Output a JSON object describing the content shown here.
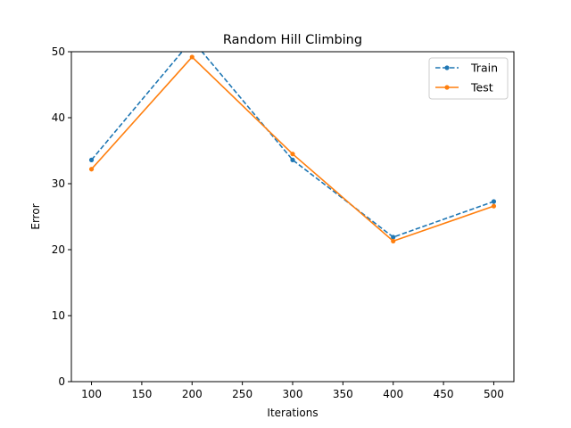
{
  "chart_data": {
    "type": "line",
    "title": "Random Hill Climbing",
    "xlabel": "Iterations",
    "ylabel": "Error",
    "x": [
      100,
      200,
      300,
      400,
      500
    ],
    "xlim": [
      80,
      520
    ],
    "ylim": [
      0,
      50
    ],
    "xticks": [
      100,
      150,
      200,
      250,
      300,
      350,
      400,
      450,
      500
    ],
    "yticks": [
      0,
      10,
      20,
      30,
      40,
      50
    ],
    "grid": false,
    "legend_position": "top-right",
    "series": [
      {
        "name": "Train",
        "values": [
          33.6,
          51.8,
          33.6,
          21.9,
          27.3
        ],
        "color": "#1f77b4",
        "style": "dashed",
        "marker": "dot"
      },
      {
        "name": "Test",
        "values": [
          32.2,
          49.2,
          34.5,
          21.3,
          26.6
        ],
        "color": "#ff7f0e",
        "style": "solid",
        "marker": "dot"
      }
    ]
  }
}
